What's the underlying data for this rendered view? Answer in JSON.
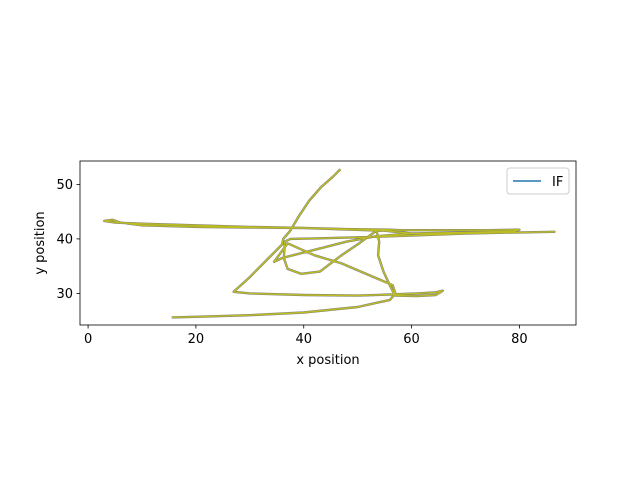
{
  "chart_data": {
    "type": "line",
    "title": "",
    "xlabel": "x position",
    "ylabel": "y position",
    "xlim": [
      -1.5,
      90.5
    ],
    "ylim": [
      24.2,
      54.3
    ],
    "xticks": [
      0,
      20,
      40,
      60,
      80
    ],
    "yticks": [
      30,
      40,
      50
    ],
    "grid": false,
    "legend": {
      "placement": "top-right",
      "entries": [
        {
          "label": "IF",
          "color": "#1f77b4"
        }
      ]
    },
    "series": [
      {
        "name": "IF",
        "color": "#bcbd22",
        "outline_color": "#7f7f7f",
        "x": [
          46.8,
          45.5,
          43.2,
          41.0,
          39.0,
          37.5,
          36.2,
          36.0,
          35.5,
          33.5,
          30.0,
          27.0,
          30.0,
          40.0,
          50.0,
          56.0,
          61.0,
          64.5,
          65.8,
          64.5,
          61.0,
          57.0,
          56.2,
          54.8,
          53.8,
          54.0,
          53.5,
          50.0,
          47.0,
          45.0,
          43.0,
          39.5,
          37.0,
          36.3,
          36.5,
          37.5,
          42.0,
          50.0,
          60.0,
          70.0,
          80.0,
          86.5,
          80.0,
          70.0,
          60.0,
          55.0,
          40.0,
          30.0,
          20.0,
          10.0,
          6.0,
          4.5,
          3.0,
          5.0,
          10.0,
          20.0,
          30.0,
          40.0,
          48.0,
          56.0,
          58.0,
          68.0,
          74.0,
          80.0,
          79.0,
          70.0,
          60.0,
          53.5,
          48.0,
          42.0,
          36.0,
          34.5,
          37.0,
          42.0,
          47.0,
          53.0,
          56.5,
          57.0,
          56.0,
          50.0,
          40.0,
          30.0,
          20.0,
          15.5
        ],
        "y": [
          52.8,
          51.5,
          49.5,
          47.0,
          44.0,
          41.5,
          40.0,
          39.0,
          38.5,
          36.5,
          33.0,
          30.3,
          30.0,
          29.7,
          29.6,
          29.8,
          30.0,
          30.2,
          30.5,
          29.7,
          29.5,
          29.6,
          31.0,
          34.0,
          37.0,
          39.5,
          41.5,
          39.0,
          37.0,
          35.5,
          34.0,
          33.6,
          34.5,
          36.5,
          39.5,
          40.0,
          40.1,
          40.3,
          40.6,
          41.0,
          41.2,
          41.3,
          41.2,
          41.0,
          41.0,
          41.5,
          42.0,
          42.1,
          42.2,
          42.5,
          43.0,
          43.5,
          43.3,
          43.0,
          42.8,
          42.5,
          42.2,
          42.0,
          41.8,
          41.7,
          41.6,
          41.6,
          41.6,
          41.7,
          41.4,
          41.2,
          41.0,
          40.5,
          39.5,
          38.0,
          36.5,
          35.8,
          39.2,
          37.0,
          35.5,
          33.0,
          31.5,
          30.0,
          28.8,
          27.5,
          26.5,
          26.0,
          25.7,
          25.6
        ]
      }
    ]
  }
}
